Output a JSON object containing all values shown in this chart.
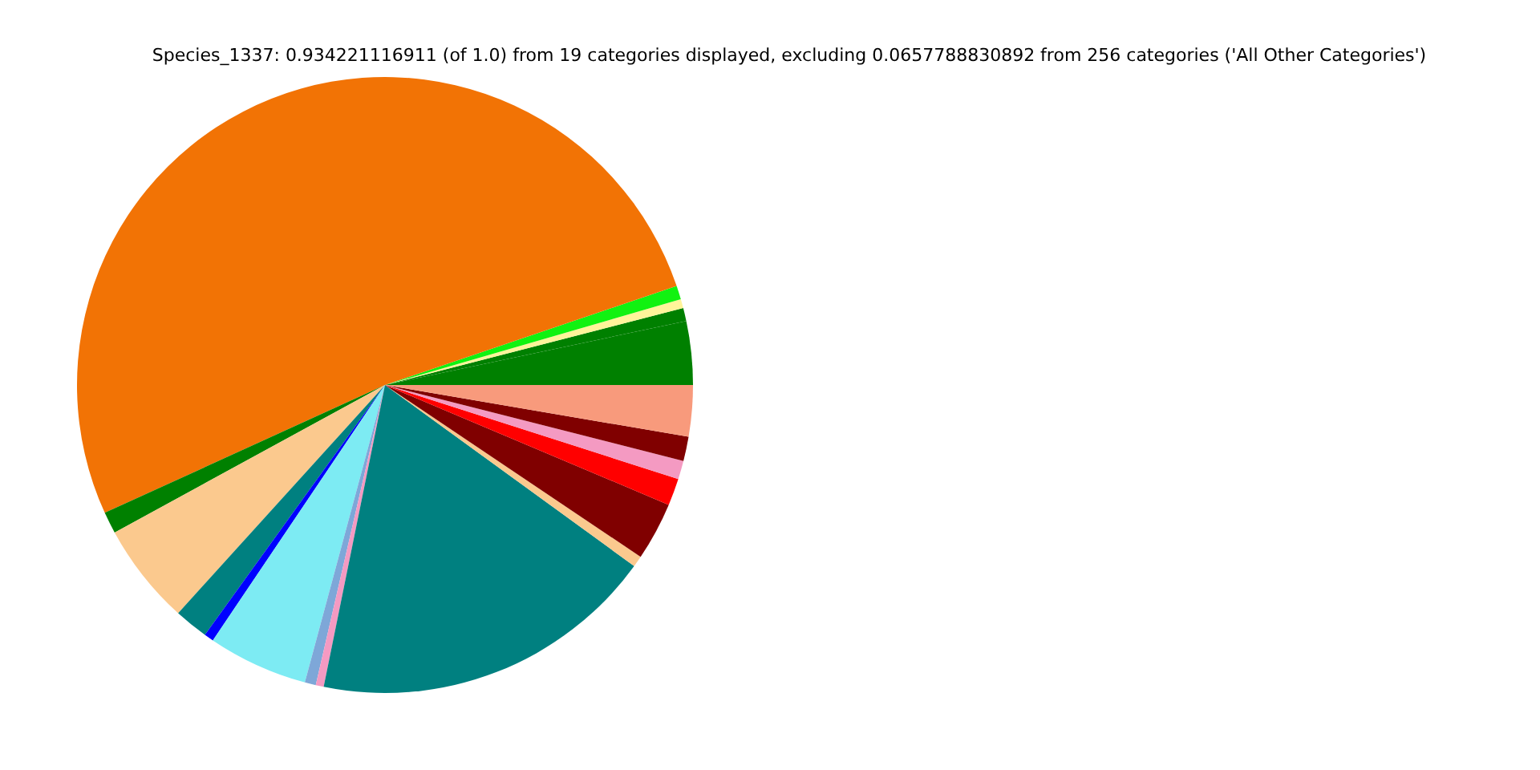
{
  "chart_data": {
    "type": "pie",
    "title": "Species_1337: 0.934221116911 (of 1.0) from 19 categories displayed, excluding 0.0657788830892 from 256 categories ('All Other Categories')",
    "categories": [
      null,
      null,
      null,
      null,
      null,
      null,
      null,
      null,
      null,
      null,
      null,
      null,
      null,
      null,
      null,
      null,
      null,
      null,
      null
    ],
    "values": [
      3.33,
      0.69,
      0.47,
      0.72,
      51.6,
      1.14,
      5.33,
      1.78,
      0.5,
      5.25,
      0.58,
      0.42,
      18.19,
      0.58,
      3.06,
      1.42,
      0.97,
      1.28,
      2.69
    ],
    "colors": [
      "#008000",
      "#008000",
      "#fff49a",
      "#11f211",
      "#f27305",
      "#008000",
      "#fbc98e",
      "#008080",
      "#0000ff",
      "#7debf3",
      "#7ea7d8",
      "#f49ac2",
      "#008080",
      "#fbc98e",
      "#800000",
      "#ff0000",
      "#f49ac2",
      "#800000",
      "#f89a7c"
    ],
    "legend": false
  }
}
